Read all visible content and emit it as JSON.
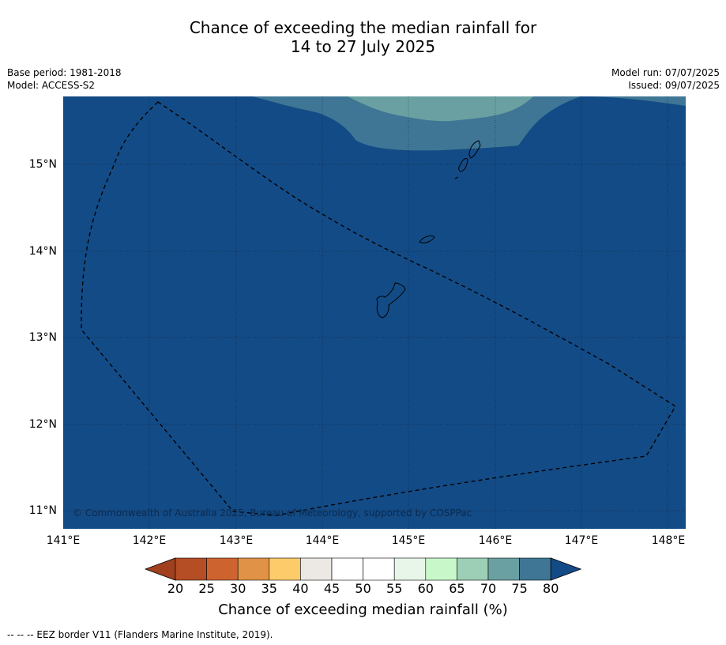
{
  "title_line1": "Chance of exceeding the median rainfall for",
  "title_line2": "14 to 27 July 2025",
  "meta": {
    "base_period": "Base period: 1981-2018",
    "model": "Model: ACCESS-S2",
    "model_run": "Model run: 07/07/2025",
    "issued": "Issued: 09/07/2025"
  },
  "map": {
    "lon_labels": [
      "141°E",
      "142°E",
      "143°E",
      "144°E",
      "145°E",
      "146°E",
      "147°E",
      "148°E"
    ],
    "lat_labels": [
      "15°N",
      "14°N",
      "13°N",
      "12°N",
      "11°N"
    ],
    "copyright": "© Commonwealth of Australia 2025, Bureau of Meteorology, supported by COSPPac",
    "background_color": "#134b86",
    "band_colors": [
      "#3f7695",
      "#6aa0a1"
    ]
  },
  "colorbar": {
    "ticks": [
      "20",
      "25",
      "30",
      "35",
      "40",
      "45",
      "50",
      "55",
      "60",
      "65",
      "70",
      "75",
      "80"
    ],
    "colors": [
      "#a0401f",
      "#b54d25",
      "#cd6430",
      "#e09346",
      "#fecb6b",
      "#ece8e4",
      "#ffffff",
      "#ffffff",
      "#e8f5e9",
      "#c8f8c9",
      "#9ccfb5",
      "#6aa0a1",
      "#3f7695",
      "#134b86"
    ],
    "label": "Chance of exceeding median rainfall (%)"
  },
  "footnote": "--  --  -- EEZ border V11 (Flanders Marine Institute, 2019)."
}
